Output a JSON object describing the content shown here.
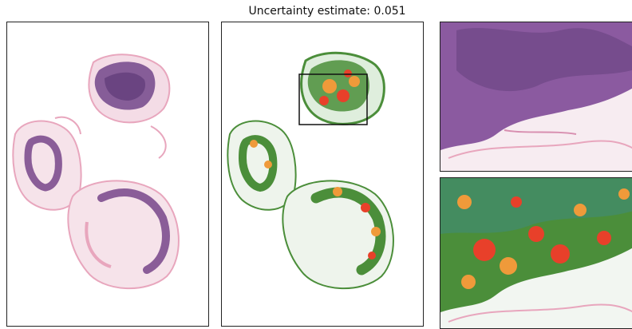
{
  "figure": {
    "title": "Uncertainty estimate: 0.051"
  },
  "colors": {
    "stain_purple": "#7a4f8f",
    "stain_pink": "#e8a6bd",
    "heat_red": "#e8402a",
    "heat_orange": "#ef9a3a",
    "heat_green": "#4b8e3a",
    "heat_teal": "#3f8a7a",
    "roi_box": "#111111"
  },
  "panels": [
    {
      "id": "original-slide",
      "content": "H&E stained tissue slide"
    },
    {
      "id": "heatmap-overlay",
      "content": "tissue with prediction heatmap and region-of-interest box"
    },
    {
      "id": "zoom-original",
      "content": "magnified region of stained tissue"
    },
    {
      "id": "zoom-heatmap",
      "content": "magnified region with heatmap overlay"
    }
  ]
}
